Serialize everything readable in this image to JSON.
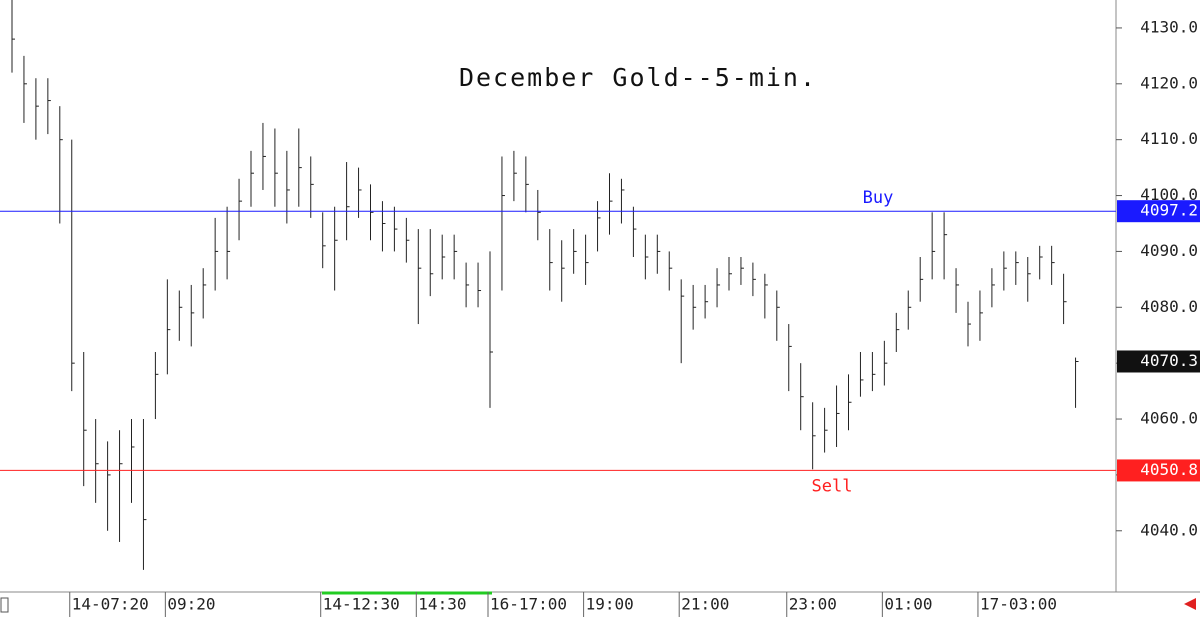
{
  "chart_data": {
    "type": "ohlc",
    "title": "December Gold--5-min.",
    "categories": [
      null,
      null,
      null,
      null,
      null,
      "14-07:20",
      null,
      null,
      null,
      null,
      null,
      null,
      null,
      "09:20",
      null,
      null,
      null,
      null,
      null,
      null,
      null,
      null,
      null,
      null,
      null,
      null,
      "14-12:30",
      null,
      null,
      null,
      null,
      null,
      null,
      null,
      "14:30",
      null,
      null,
      null,
      null,
      null,
      "16-17:00",
      null,
      null,
      null,
      null,
      null,
      null,
      null,
      "19:00",
      null,
      null,
      null,
      null,
      null,
      null,
      null,
      "21:00",
      null,
      null,
      null,
      null,
      null,
      null,
      null,
      null,
      "23:00",
      null,
      null,
      null,
      null,
      null,
      null,
      null,
      "01:00",
      null,
      null,
      null,
      null,
      null,
      null,
      null,
      "17-03:00",
      null,
      null,
      null,
      null,
      null,
      null,
      null,
      null
    ],
    "high": [
      4135,
      4125,
      4121,
      4121,
      4116,
      4110,
      4072,
      4060,
      4056,
      4058,
      4060,
      4060,
      4072,
      4085,
      4083,
      4084,
      4087,
      4096,
      4098,
      4103,
      4108,
      4113,
      4112,
      4108,
      4112,
      4107,
      4097,
      4098,
      4106,
      4105,
      4102,
      4099,
      4098,
      4096,
      4094,
      4094,
      4093,
      4093,
      4088,
      4088,
      4090,
      4107,
      4108,
      4107,
      4101,
      4094,
      4092,
      4094,
      4093,
      4099,
      4104,
      4103,
      4098,
      4093,
      4093,
      4090,
      4085,
      4084,
      4084,
      4087,
      4089,
      4089,
      4088,
      4086,
      4083,
      4077,
      4070,
      4063,
      4062,
      4066,
      4068,
      4072,
      4072,
      4074,
      4079,
      4083,
      4089,
      4097,
      4097,
      4087,
      4081,
      4083,
      4087,
      4090,
      4090,
      4089,
      4091,
      4091,
      4086,
      4071
    ],
    "low": [
      4122,
      4113,
      4110,
      4111,
      4095,
      4065,
      4048,
      4045,
      4040,
      4038,
      4045,
      4033,
      4060,
      4068,
      4074,
      4073,
      4078,
      4083,
      4085,
      4092,
      4098,
      4101,
      4098,
      4095,
      4098,
      4096,
      4087,
      4083,
      4092,
      4096,
      4092,
      4090,
      4090,
      4088,
      4077,
      4082,
      4085,
      4085,
      4080,
      4080,
      4062,
      4083,
      4099,
      4097,
      4092,
      4083,
      4081,
      4086,
      4084,
      4090,
      4093,
      4095,
      4089,
      4085,
      4086,
      4083,
      4070,
      4076,
      4078,
      4080,
      4083,
      4084,
      4082,
      4078,
      4074,
      4065,
      4058,
      4051,
      4054,
      4055,
      4058,
      4064,
      4065,
      4066,
      4072,
      4076,
      4081,
      4085,
      4085,
      4079,
      4073,
      4074,
      4080,
      4083,
      4084,
      4081,
      4085,
      4084,
      4077,
      4062
    ],
    "close": [
      4128,
      4120,
      4116,
      4117,
      4110,
      4070,
      4058,
      4052,
      4050,
      4052,
      4055,
      4042,
      4068,
      4076,
      4080,
      4079,
      4084,
      4090,
      4090,
      4099,
      4104,
      4107,
      4104,
      4101,
      4105,
      4102,
      4091,
      4092,
      4098,
      4101,
      4097,
      4095,
      4094,
      4092,
      4087,
      4086,
      4089,
      4090,
      4084,
      4083,
      4072,
      4100,
      4104,
      4102,
      4097,
      4088,
      4087,
      4090,
      4088,
      4096,
      4099,
      4101,
      4094,
      4089,
      4090,
      4087,
      4082,
      4080,
      4081,
      4084,
      4086,
      4087,
      4085,
      4084,
      4080,
      4073,
      4064,
      4057,
      4058,
      4061,
      4063,
      4067,
      4068,
      4070,
      4076,
      4080,
      4085,
      4090,
      4093,
      4084,
      4077,
      4079,
      4084,
      4087,
      4088,
      4086,
      4089,
      4088,
      4081,
      4070.3
    ],
    "color": "#222222",
    "ylim": [
      4029.4,
      4135
    ],
    "yticks": [
      {
        "value": 4040,
        "label": "4040.0"
      },
      {
        "value": 4050,
        "label": "4050.0"
      },
      {
        "value": 4060,
        "label": "4060.0"
      },
      {
        "value": 4070,
        "label": "4070.0"
      },
      {
        "value": 4080,
        "label": "4080.0"
      },
      {
        "value": 4090,
        "label": "4090.0"
      },
      {
        "value": 4100,
        "label": "4100.0"
      },
      {
        "value": 4110,
        "label": "4110.0"
      },
      {
        "value": 4120,
        "label": "4120.0"
      },
      {
        "value": 4130,
        "label": "4130.0"
      }
    ],
    "levels": [
      {
        "name": "Buy",
        "value": 4097.2,
        "color": "#1a1aff"
      },
      {
        "name": "Sell",
        "value": 4050.8,
        "color": "#ff2020"
      }
    ],
    "last": {
      "value": 4070.3,
      "color": "#111111"
    }
  }
}
